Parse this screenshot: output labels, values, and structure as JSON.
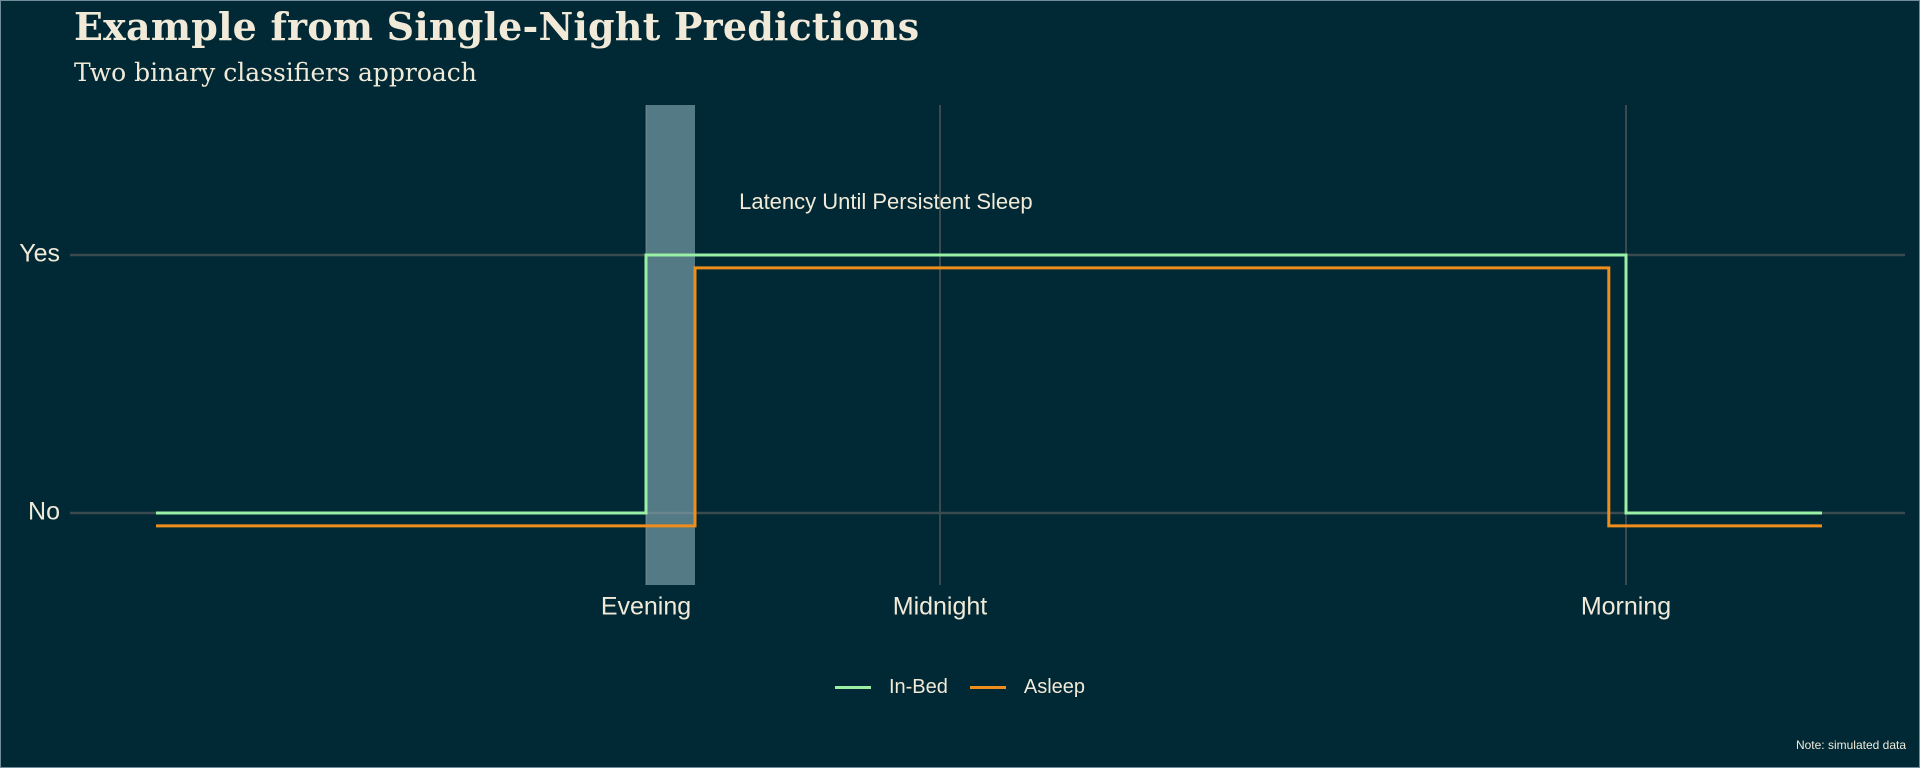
{
  "title": "Example from Single-Night Predictions",
  "subtitle": "Two binary classifiers approach",
  "caption": "Note: simulated data",
  "colors": {
    "background": "#002935",
    "grid": "#3a4a4f",
    "text": "#f1ead8",
    "in_bed": "#9af0a4",
    "asleep": "#f08e1c",
    "latency_band": "#8bb0ba"
  },
  "chart_data": {
    "type": "line",
    "step": true,
    "x_ticks": [
      {
        "label": "Evening",
        "x": 0
      },
      {
        "label": "Midnight",
        "x": 6
      },
      {
        "label": "Morning",
        "x": 20
      }
    ],
    "y_ticks": [
      {
        "label": "Yes",
        "y": 1
      },
      {
        "label": "No",
        "y": 0
      }
    ],
    "xlim": [
      -10,
      24
    ],
    "ylim": [
      -0.3,
      1.6
    ],
    "series": [
      {
        "name": "In-Bed",
        "color": "#9af0a4",
        "points": [
          [
            -10,
            0
          ],
          [
            0,
            0
          ],
          [
            0,
            1
          ],
          [
            20,
            1
          ],
          [
            20,
            0
          ],
          [
            24,
            0
          ]
        ]
      },
      {
        "name": "Asleep",
        "color": "#f08e1c",
        "points": [
          [
            -10,
            -0.05
          ],
          [
            1,
            -0.05
          ],
          [
            1,
            0.95
          ],
          [
            19.65,
            0.95
          ],
          [
            19.65,
            -0.05
          ],
          [
            24,
            -0.05
          ]
        ]
      }
    ],
    "band": {
      "x_start": 0,
      "x_end": 1,
      "color": "#8bb0ba"
    },
    "annotation": {
      "text": "Latency Until Persistent Sleep",
      "x": 1.9,
      "y": 1.2
    },
    "legend_position": "bottom",
    "grid": true
  }
}
